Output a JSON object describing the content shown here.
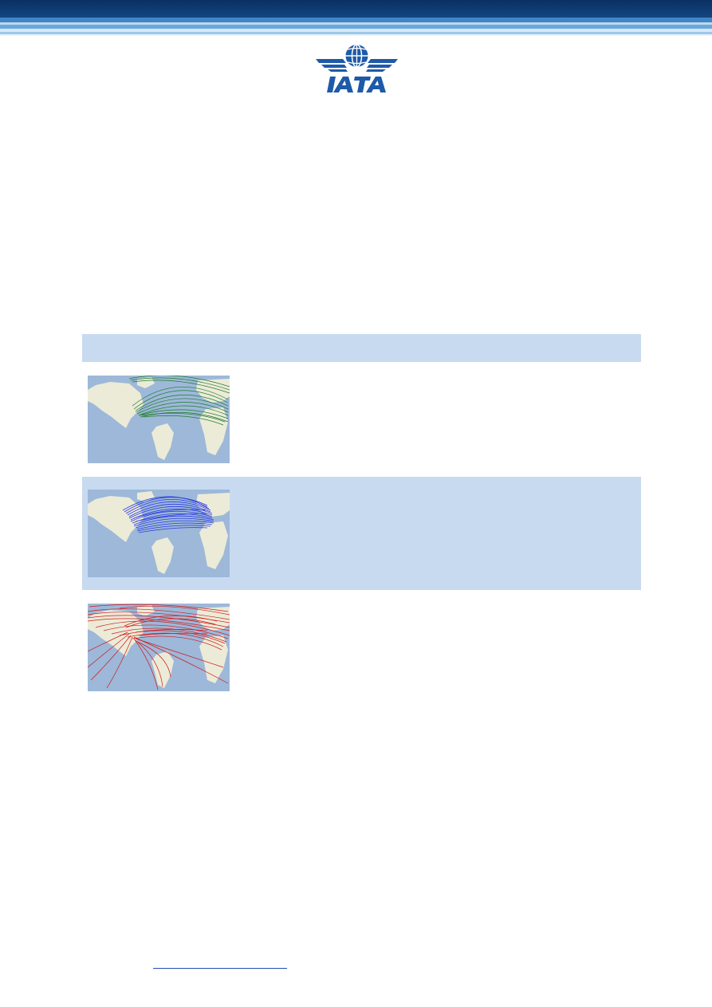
{
  "brand": {
    "logo_text": "IATA",
    "colors": {
      "navy": "#0b2f63",
      "mid_blue": "#3f86c6",
      "light_blue": "#c8daf0",
      "logo_blue": "#1e5aa8"
    }
  },
  "routes_table": {
    "rows": [
      {
        "map_icon": "route-map-icon",
        "route_color": "#1e7a2a"
      },
      {
        "map_icon": "route-map-icon",
        "route_color": "#2a3ae0"
      },
      {
        "map_icon": "route-map-icon",
        "route_color": "#d11a1a"
      }
    ]
  }
}
